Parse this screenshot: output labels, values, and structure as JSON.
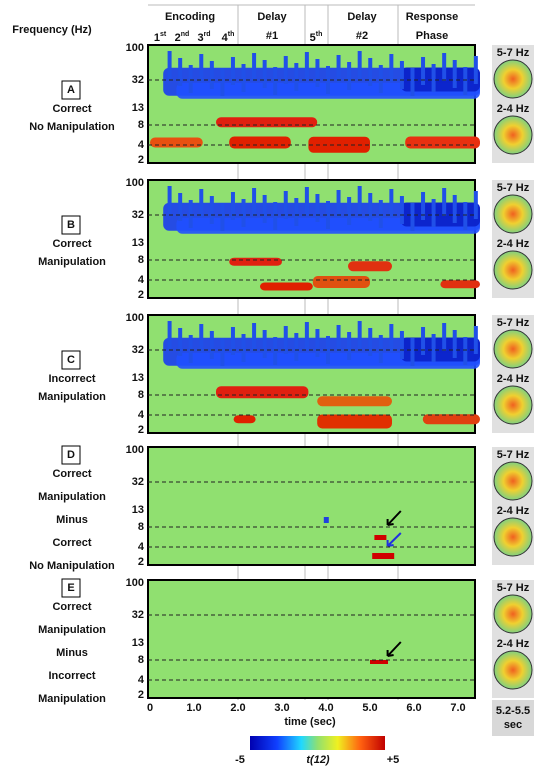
{
  "header": {
    "y_axis_title": "Frequency (Hz)",
    "encoding": "Encoding",
    "ordinals": [
      {
        "n": "1",
        "suffix": "st"
      },
      {
        "n": "2",
        "suffix": "nd"
      },
      {
        "n": "3",
        "suffix": "rd"
      },
      {
        "n": "4",
        "suffix": "th"
      }
    ],
    "phases": [
      {
        "lines": [
          "Delay",
          "#1"
        ]
      },
      {
        "lines": [
          "5",
          "th"
        ]
      },
      {
        "lines": [
          "Delay",
          "#2"
        ]
      },
      {
        "lines": [
          "Response",
          "Phase"
        ]
      }
    ]
  },
  "panels": [
    {
      "letter": "A",
      "label_lines": [
        "Correct",
        "No Manipulation"
      ]
    },
    {
      "letter": "B",
      "label_lines": [
        "Correct",
        "Manipulation"
      ]
    },
    {
      "letter": "C",
      "label_lines": [
        "Incorrect",
        "Manipulation"
      ]
    },
    {
      "letter": "D",
      "label_lines": [
        "Correct",
        "Manipulation",
        "Minus",
        "Correct",
        "No Manipulation"
      ]
    },
    {
      "letter": "E",
      "label_lines": [
        "Correct",
        "Manipulation",
        "Minus",
        "Incorrect",
        "Manipulation"
      ]
    }
  ],
  "yticks": [
    "100",
    "32",
    "13",
    "8",
    "4",
    "2"
  ],
  "xticks": [
    "0",
    "1.0",
    "2.0",
    "3.0",
    "4.0",
    "5.0",
    "6.0",
    "7.0"
  ],
  "x_axis_title": "time (sec)",
  "colorbar": {
    "min": "-5",
    "label": "t(12)",
    "max": "+5"
  },
  "topo": {
    "labels": [
      "5-7 Hz",
      "2-4 Hz"
    ],
    "time_lines": [
      "5.2-5.5",
      "sec"
    ]
  }
}
